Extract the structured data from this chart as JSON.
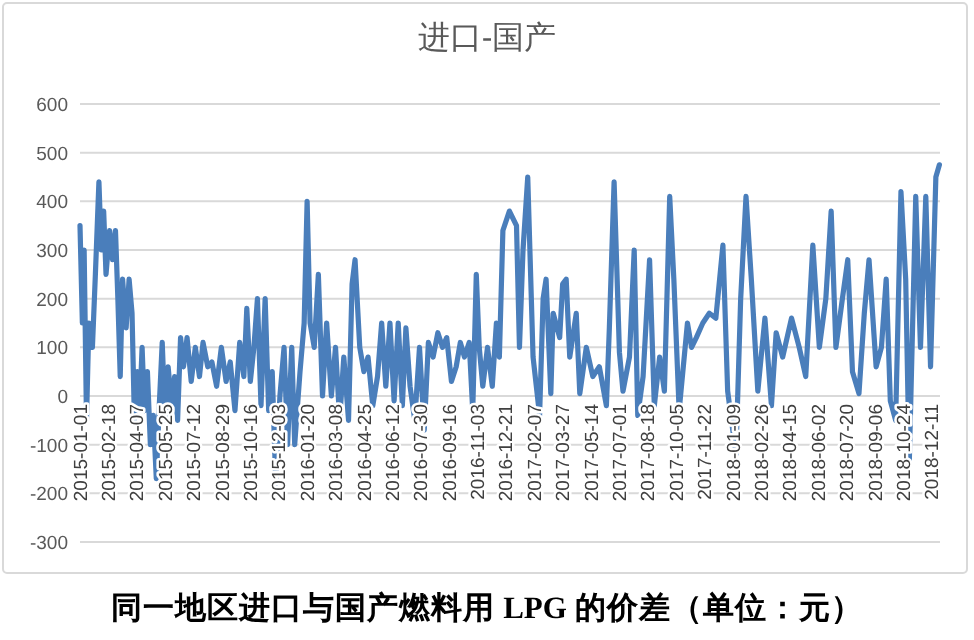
{
  "chart_data": {
    "type": "line",
    "title": "进口-国产",
    "annotations": [
      "同一地区进口与国产燃料用 LPG 的价差（单位：元）"
    ],
    "color": "#4a7ebb",
    "grid": "y",
    "ylim": [
      -300,
      600
    ],
    "yticks": [
      -300,
      -200,
      -100,
      0,
      100,
      200,
      300,
      400,
      500,
      600
    ],
    "xlim": [
      "2015-01-01",
      "2018-12-25"
    ],
    "xticks": [
      "2015-01-01",
      "2015-02-18",
      "2015-04-07",
      "2015-05-25",
      "2015-07-12",
      "2015-08-29",
      "2015-10-16",
      "2015-12-03",
      "2016-01-20",
      "2016-03-08",
      "2016-04-25",
      "2016-06-12",
      "2016-07-30",
      "2016-09-16",
      "2016-11-03",
      "2016-12-21",
      "2017-02-07",
      "2017-03-27",
      "2017-05-14",
      "2017-07-01",
      "2017-08-18",
      "2017-10-05",
      "2017-11-22",
      "2018-01-09",
      "2018-02-26",
      "2018-04-15",
      "2018-06-02",
      "2018-07-20",
      "2018-09-06",
      "2018-10-24",
      "2018-12-11"
    ],
    "x": [
      "2015-01-01",
      "2015-01-05",
      "2015-01-08",
      "2015-01-12",
      "2015-01-16",
      "2015-01-22",
      "2015-01-27",
      "2015-02-02",
      "2015-02-06",
      "2015-02-10",
      "2015-02-14",
      "2015-02-20",
      "2015-02-25",
      "2015-03-02",
      "2015-03-06",
      "2015-03-10",
      "2015-03-14",
      "2015-03-20",
      "2015-03-25",
      "2015-03-30",
      "2015-04-03",
      "2015-04-08",
      "2015-04-12",
      "2015-04-16",
      "2015-04-20",
      "2015-04-25",
      "2015-04-30",
      "2015-05-05",
      "2015-05-10",
      "2015-05-15",
      "2015-05-20",
      "2015-05-25",
      "2015-05-30",
      "2015-06-05",
      "2015-06-10",
      "2015-06-15",
      "2015-06-20",
      "2015-06-25",
      "2015-07-01",
      "2015-07-08",
      "2015-07-15",
      "2015-07-22",
      "2015-07-28",
      "2015-08-05",
      "2015-08-12",
      "2015-08-20",
      "2015-08-28",
      "2015-09-05",
      "2015-09-12",
      "2015-09-20",
      "2015-09-28",
      "2015-10-05",
      "2015-10-10",
      "2015-10-16",
      "2015-10-22",
      "2015-10-28",
      "2015-11-03",
      "2015-11-10",
      "2015-11-16",
      "2015-11-22",
      "2015-11-28",
      "2015-12-05",
      "2015-12-12",
      "2015-12-18",
      "2015-12-25",
      "2015-12-30",
      "2016-01-08",
      "2016-01-15",
      "2016-01-20",
      "2016-01-25",
      "2016-02-01",
      "2016-02-08",
      "2016-02-15",
      "2016-02-22",
      "2016-03-01",
      "2016-03-08",
      "2016-03-15",
      "2016-03-22",
      "2016-03-30",
      "2016-04-05",
      "2016-04-10",
      "2016-04-18",
      "2016-04-25",
      "2016-05-02",
      "2016-05-10",
      "2016-05-18",
      "2016-05-25",
      "2016-06-01",
      "2016-06-08",
      "2016-06-15",
      "2016-06-22",
      "2016-06-29",
      "2016-07-05",
      "2016-07-12",
      "2016-07-20",
      "2016-07-28",
      "2016-08-05",
      "2016-08-12",
      "2016-08-20",
      "2016-08-28",
      "2016-09-05",
      "2016-09-12",
      "2016-09-20",
      "2016-09-28",
      "2016-10-05",
      "2016-10-12",
      "2016-10-20",
      "2016-10-26",
      "2016-11-01",
      "2016-11-06",
      "2016-11-12",
      "2016-11-20",
      "2016-11-28",
      "2016-12-05",
      "2016-12-10",
      "2016-12-16",
      "2016-12-27",
      "2017-01-08",
      "2017-01-13",
      "2017-01-19",
      "2017-01-27",
      "2017-02-05",
      "2017-02-16",
      "2017-02-22",
      "2017-02-27",
      "2017-03-07",
      "2017-03-11",
      "2017-03-22",
      "2017-03-27",
      "2017-04-02",
      "2017-04-08",
      "2017-04-19",
      "2017-04-25",
      "2017-05-06",
      "2017-05-17",
      "2017-05-28",
      "2017-06-09",
      "2017-06-14",
      "2017-06-22",
      "2017-07-01",
      "2017-07-07",
      "2017-07-18",
      "2017-07-26",
      "2017-08-01",
      "2017-08-10",
      "2017-08-21",
      "2017-08-29",
      "2017-09-07",
      "2017-09-15",
      "2017-09-24",
      "2017-10-01",
      "2017-10-10",
      "2017-10-24",
      "2017-10-31",
      "2017-11-08",
      "2017-11-19",
      "2017-11-30",
      "2017-12-11",
      "2017-12-23",
      "2017-12-31",
      "2018-01-14",
      "2018-01-22",
      "2018-01-31",
      "2018-02-09",
      "2018-02-20",
      "2018-03-04",
      "2018-03-15",
      "2018-03-23",
      "2018-04-03",
      "2018-04-18",
      "2018-05-01",
      "2018-05-12",
      "2018-05-24",
      "2018-06-04",
      "2018-06-15",
      "2018-06-24",
      "2018-07-02",
      "2018-07-13",
      "2018-07-22",
      "2018-07-30",
      "2018-08-10",
      "2018-08-19",
      "2018-08-27",
      "2018-09-08",
      "2018-09-17",
      "2018-09-25",
      "2018-10-02",
      "2018-10-11",
      "2018-10-20",
      "2018-10-28",
      "2018-11-03",
      "2018-11-14",
      "2018-11-22",
      "2018-12-01",
      "2018-12-09",
      "2018-12-18",
      "2018-12-24"
    ],
    "values": [
      350,
      150,
      300,
      -50,
      150,
      100,
      250,
      440,
      300,
      380,
      250,
      340,
      280,
      340,
      200,
      40,
      240,
      140,
      240,
      170,
      -50,
      50,
      -20,
      100,
      -30,
      50,
      -100,
      -40,
      -170,
      -20,
      110,
      -50,
      60,
      -20,
      40,
      -50,
      120,
      60,
      120,
      30,
      100,
      40,
      110,
      60,
      70,
      20,
      100,
      30,
      70,
      -30,
      110,
      40,
      180,
      30,
      100,
      200,
      -20,
      200,
      -30,
      50,
      -180,
      0,
      100,
      -100,
      100,
      -100,
      50,
      150,
      400,
      150,
      100,
      250,
      0,
      150,
      0,
      100,
      -50,
      80,
      -50,
      230,
      280,
      100,
      50,
      80,
      -20,
      40,
      150,
      20,
      150,
      -10,
      150,
      -20,
      140,
      20,
      -50,
      100,
      -70,
      110,
      80,
      130,
      100,
      120,
      30,
      60,
      110,
      80,
      110,
      -30,
      250,
      100,
      20,
      100,
      20,
      150,
      80,
      340,
      380,
      350,
      100,
      300,
      450,
      80,
      -40,
      200,
      240,
      5,
      170,
      120,
      230,
      240,
      80,
      170,
      5,
      100,
      40,
      60,
      -20,
      140,
      440,
      90,
      10,
      80,
      300,
      -40,
      40,
      280,
      -20,
      80,
      10,
      410,
      240,
      -30,
      150,
      100,
      120,
      150,
      170,
      160,
      310,
      10,
      -120,
      200,
      410,
      240,
      10,
      160,
      -20,
      130,
      80,
      160,
      100,
      40,
      310,
      100,
      200,
      380,
      100,
      200,
      280,
      50,
      5,
      170,
      280,
      60,
      100,
      240,
      -10,
      -50,
      420,
      240,
      -140,
      410,
      100,
      410,
      60,
      450,
      475
    ]
  }
}
